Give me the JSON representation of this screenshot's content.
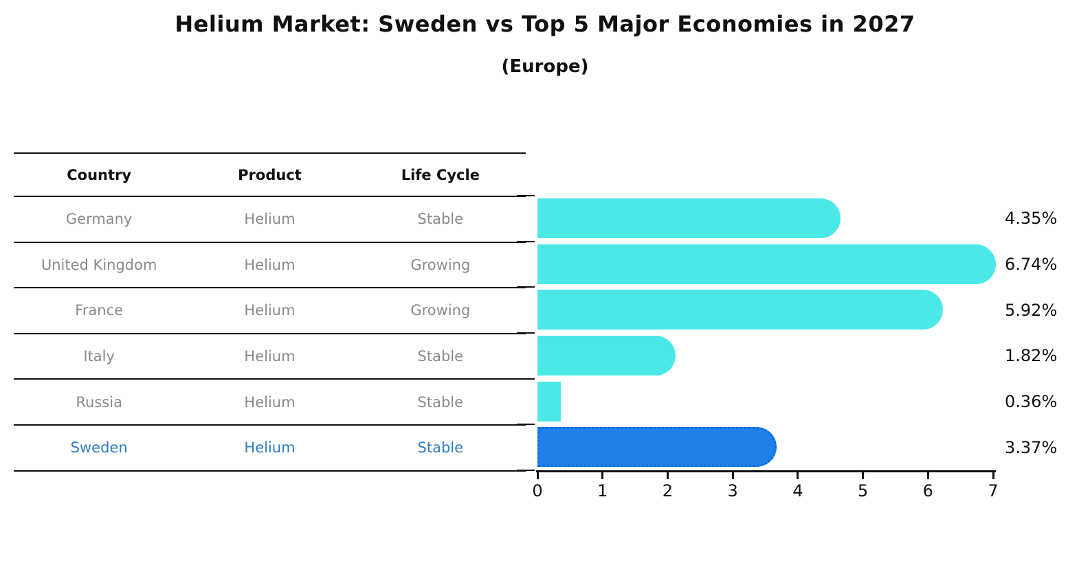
{
  "title": "Helium Market: Sweden vs Top 5 Major Economies in 2027",
  "subtitle": "(Europe)",
  "table": {
    "columns": [
      "Country",
      "Product",
      "Life Cycle"
    ],
    "rows": [
      {
        "country": "Germany",
        "product": "Helium",
        "life_cycle": "Stable",
        "highlighted": false
      },
      {
        "country": "United Kingdom",
        "product": "Helium",
        "life_cycle": "Growing",
        "highlighted": false
      },
      {
        "country": "France",
        "product": "Helium",
        "life_cycle": "Growing",
        "highlighted": false
      },
      {
        "country": "Italy",
        "product": "Helium",
        "life_cycle": "Stable",
        "highlighted": false
      },
      {
        "country": "Russia",
        "product": "Helium",
        "life_cycle": "Stable",
        "highlighted": false
      },
      {
        "country": "Sweden",
        "product": "Helium",
        "life_cycle": "Stable",
        "highlighted": true
      }
    ]
  },
  "chart_data": {
    "type": "bar",
    "orientation": "horizontal",
    "title": "Helium Market: Sweden vs Top 5 Major Economies in 2027",
    "subtitle": "(Europe)",
    "categories": [
      "Germany",
      "United Kingdom",
      "France",
      "Italy",
      "Russia",
      "Sweden"
    ],
    "values": [
      4.35,
      6.74,
      5.92,
      1.82,
      0.36,
      3.37
    ],
    "value_labels": [
      "4.35%",
      "6.74%",
      "5.92%",
      "1.82%",
      "0.36%",
      "3.37%"
    ],
    "xlim": [
      0,
      7
    ],
    "x_ticks": [
      "0",
      "1",
      "2",
      "3",
      "4",
      "5",
      "6",
      "7"
    ],
    "grid": false,
    "legend": "none",
    "bar_color": "#4be8e5",
    "highlight_color": "#1e80e8",
    "highlight_index": 5,
    "highlight_category": "Sweden"
  }
}
